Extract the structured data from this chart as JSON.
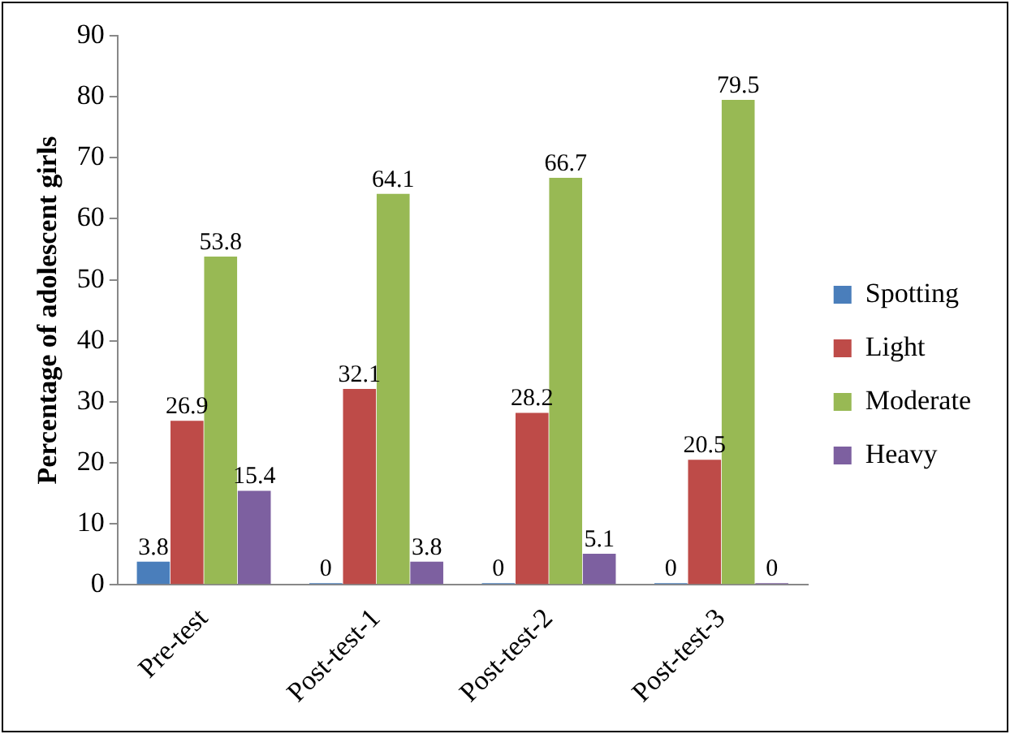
{
  "chart_data": {
    "type": "bar",
    "ylabel": "Percentage of adolescent girls",
    "categories": [
      "Pre-test",
      "Post-test-1",
      "Post-test-2",
      "Post-test-3"
    ],
    "series": [
      {
        "name": "Spotting",
        "color": "#4a7ebb",
        "values": [
          3.8,
          0,
          0,
          0
        ]
      },
      {
        "name": "Light",
        "color": "#be4b48",
        "values": [
          26.9,
          32.1,
          28.2,
          20.5
        ]
      },
      {
        "name": "Moderate",
        "color": "#98b954",
        "values": [
          53.8,
          64.1,
          66.7,
          79.5
        ]
      },
      {
        "name": "Heavy",
        "color": "#7d60a0",
        "values": [
          15.4,
          3.8,
          5.1,
          0
        ]
      }
    ],
    "ylim": [
      0,
      90
    ],
    "yticks": [
      0,
      10,
      20,
      30,
      40,
      50,
      60,
      70,
      80,
      90
    ],
    "data_labels": true,
    "legend": "right"
  }
}
